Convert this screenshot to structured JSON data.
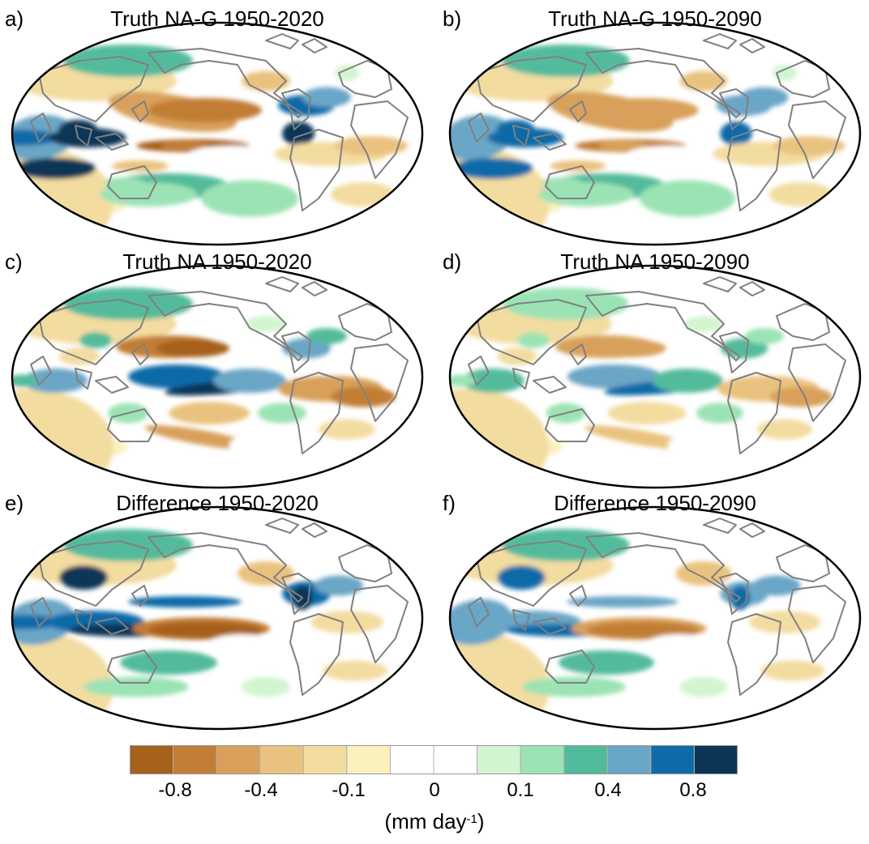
{
  "panels": [
    {
      "id": "a",
      "label": "a)",
      "title": "Truth NA-G 1950-2020",
      "pattern": "nag",
      "intensity": 1.0
    },
    {
      "id": "b",
      "label": "b)",
      "title": "Truth NA-G 1950-2090",
      "pattern": "nag",
      "intensity": 0.85
    },
    {
      "id": "c",
      "label": "c)",
      "title": "Truth NA 1950-2020",
      "pattern": "na",
      "intensity": 1.0
    },
    {
      "id": "d",
      "label": "d)",
      "title": "Truth NA 1950-2090",
      "pattern": "na",
      "intensity": 0.7
    },
    {
      "id": "e",
      "label": "e)",
      "title": "Difference 1950-2020",
      "pattern": "diff",
      "intensity": 1.0
    },
    {
      "id": "f",
      "label": "f)",
      "title": "Difference 1950-2090",
      "pattern": "diff",
      "intensity": 0.85
    }
  ],
  "colorbar": {
    "colors": [
      "#a6611a",
      "#c27d36",
      "#d8a05a",
      "#eac27f",
      "#f3dca0",
      "#fbf1be",
      "#ffffff",
      "#ffffff",
      "#d2f5d0",
      "#9be3b4",
      "#52bb9b",
      "#6aa6c6",
      "#0f6aa8",
      "#0b3656"
    ],
    "tick_labels": [
      "-0.8",
      "-0.4",
      "-0.1",
      "0",
      "0.1",
      "0.4",
      "0.8"
    ],
    "units_main": "(mm day",
    "units_sup": "-1",
    "units_close": ")"
  },
  "colors": {
    "coast": "#808080",
    "border": "#000000"
  }
}
